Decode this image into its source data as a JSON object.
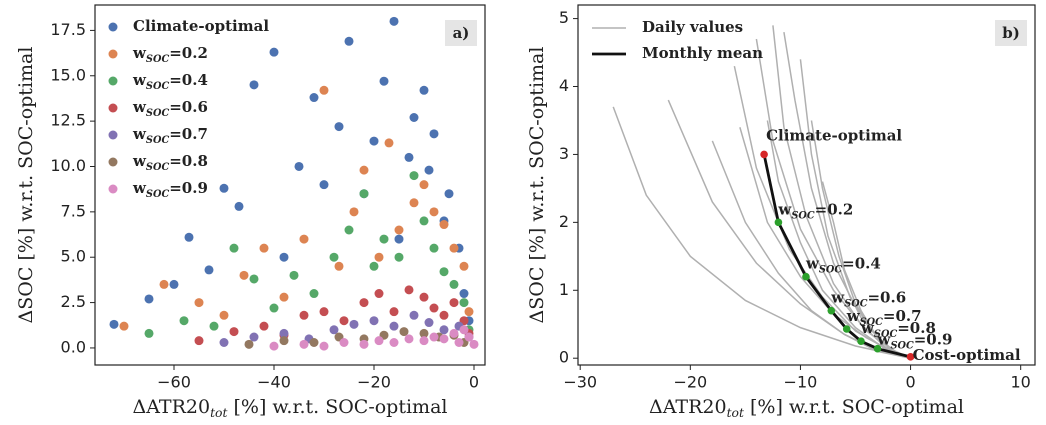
{
  "chart_data": [
    {
      "type": "scatter",
      "panel_label": "a)",
      "x_label": "ΔATR20tot [%] w.r.t. SOC-optimal",
      "y_label": "ΔSOC [%] w.r.t. SOC-optimal",
      "xlim": [
        -75.8,
        2.2
      ],
      "ylim": [
        -0.94,
        18.9
      ],
      "xticks": [
        {
          "value": -60,
          "label": "−60"
        },
        {
          "value": -40,
          "label": "−40"
        },
        {
          "value": -20,
          "label": "−20"
        },
        0
      ],
      "yticks": [
        {
          "value": 0,
          "label": "0.0"
        },
        2.5,
        {
          "value": 5,
          "label": "5.0"
        },
        7.5,
        {
          "value": 10,
          "label": "10.0"
        },
        12.5,
        {
          "value": 15,
          "label": "15.0"
        },
        17.5
      ],
      "legend": "upper left",
      "series": [
        {
          "name": "Climate-optimal",
          "color": "#4c72b0",
          "x": [
            -72,
            -65,
            -60,
            -57,
            -53,
            -50,
            -47,
            -44,
            -40,
            -38,
            -35,
            -32,
            -30,
            -27,
            -25,
            -22,
            -20,
            -18,
            -16,
            -15,
            -13,
            -12,
            -10,
            -9,
            -8,
            -6,
            -5,
            -3,
            -2,
            -1
          ],
          "values": [
            1.3,
            2.7,
            3.5,
            6.1,
            4.3,
            8.8,
            7.8,
            14.5,
            16.3,
            5.0,
            10.0,
            13.8,
            9.0,
            12.2,
            16.9,
            8.5,
            11.4,
            14.7,
            18.0,
            6.0,
            10.5,
            12.7,
            14.2,
            9.8,
            11.8,
            7.0,
            8.5,
            5.5,
            3.0,
            1.5
          ]
        },
        {
          "name": "wSOC=0.2",
          "color": "#dd8452",
          "x": [
            -70,
            -62,
            -55,
            -50,
            -46,
            -42,
            -38,
            -34,
            -30,
            -27,
            -24,
            -22,
            -19,
            -17,
            -15,
            -12,
            -10,
            -8,
            -6,
            -4,
            -2,
            -1
          ],
          "values": [
            1.2,
            3.5,
            2.5,
            1.8,
            4.0,
            5.5,
            2.8,
            6.0,
            14.2,
            4.5,
            7.5,
            9.8,
            5.0,
            11.3,
            6.5,
            8.0,
            9.0,
            7.5,
            6.8,
            5.5,
            4.5,
            2.0
          ]
        },
        {
          "name": "wSOC=0.4",
          "color": "#55a868",
          "x": [
            -65,
            -58,
            -52,
            -48,
            -44,
            -40,
            -36,
            -32,
            -28,
            -25,
            -22,
            -20,
            -18,
            -15,
            -12,
            -10,
            -8,
            -6,
            -4,
            -2,
            -1
          ],
          "values": [
            0.8,
            1.5,
            1.2,
            5.5,
            3.8,
            2.2,
            4.0,
            3.0,
            5.0,
            6.5,
            8.5,
            4.5,
            6.0,
            5.0,
            9.5,
            7.0,
            5.5,
            4.2,
            3.5,
            2.5,
            1.0
          ]
        },
        {
          "name": "wSOC=0.6",
          "color": "#c44e52",
          "x": [
            -55,
            -48,
            -42,
            -38,
            -34,
            -30,
            -26,
            -22,
            -19,
            -16,
            -13,
            -10,
            -8,
            -6,
            -4,
            -2,
            -1
          ],
          "values": [
            0.4,
            0.9,
            1.2,
            0.7,
            1.8,
            2.0,
            1.5,
            2.5,
            3.0,
            2.0,
            3.2,
            2.8,
            2.2,
            1.8,
            2.5,
            1.5,
            0.8
          ]
        },
        {
          "name": "wSOC=0.7",
          "color": "#8172b3",
          "x": [
            -50,
            -44,
            -38,
            -33,
            -28,
            -24,
            -20,
            -16,
            -12,
            -9,
            -6,
            -3,
            -1
          ],
          "values": [
            0.3,
            0.6,
            0.8,
            0.5,
            1.0,
            1.3,
            1.5,
            1.2,
            1.8,
            1.4,
            1.0,
            1.2,
            0.6
          ]
        },
        {
          "name": "wSOC=0.8",
          "color": "#937860",
          "x": [
            -45,
            -38,
            -32,
            -27,
            -22,
            -18,
            -14,
            -10,
            -7,
            -4,
            -2
          ],
          "values": [
            0.2,
            0.4,
            0.3,
            0.6,
            0.5,
            0.7,
            0.9,
            0.8,
            0.6,
            0.7,
            0.3
          ]
        },
        {
          "name": "wSOC=0.9",
          "color": "#da8bc3",
          "x": [
            -40,
            -34,
            -30,
            -26,
            -22,
            -19,
            -16,
            -13,
            -10,
            -8,
            -6,
            -4,
            -3,
            -2,
            -1,
            0
          ],
          "values": [
            0.1,
            0.2,
            0.1,
            0.3,
            0.2,
            0.4,
            0.3,
            0.5,
            0.4,
            0.6,
            0.5,
            0.8,
            0.3,
            1.0,
            0.6,
            0.2
          ]
        }
      ]
    },
    {
      "type": "line",
      "panel_label": "b)",
      "x_label": "ΔATR20tot [%] w.r.t. SOC-optimal",
      "y_label": "ΔSOC [%] w.r.t. SOC-optimal",
      "xlim": [
        -30.2,
        11.3
      ],
      "ylim": [
        -0.1,
        5.2
      ],
      "xticks": [
        {
          "value": -30,
          "label": "−30"
        },
        {
          "value": -20,
          "label": "−20"
        },
        {
          "value": -10,
          "label": "−10"
        },
        0,
        10
      ],
      "yticks": [
        0,
        1,
        2,
        3,
        4,
        5
      ],
      "legend": "upper left",
      "daily": {
        "name": "Daily values",
        "color": "#b0b0b0",
        "lines": [
          {
            "x": [
              -27,
              -24,
              -20,
              -15,
              -10,
              -5,
              0
            ],
            "values": [
              3.7,
              2.4,
              1.5,
              0.85,
              0.45,
              0.18,
              0
            ]
          },
          {
            "x": [
              -22,
              -18,
              -14,
              -10,
              -6,
              -3,
              0
            ],
            "values": [
              3.8,
              2.3,
              1.4,
              0.8,
              0.35,
              0.12,
              0
            ]
          },
          {
            "x": [
              -16,
              -14,
              -11,
              -8,
              -5,
              -2,
              0
            ],
            "values": [
              4.3,
              2.8,
              1.6,
              0.9,
              0.4,
              0.12,
              0
            ]
          },
          {
            "x": [
              -14,
              -12.5,
              -10,
              -7,
              -4,
              -1,
              0
            ],
            "values": [
              4.7,
              3.2,
              1.9,
              1.0,
              0.4,
              0.05,
              0
            ]
          },
          {
            "x": [
              -12.5,
              -11.5,
              -9.5,
              -7,
              -4.5,
              -2,
              0
            ],
            "values": [
              4.9,
              3.4,
              2.1,
              1.1,
              0.5,
              0.12,
              0
            ]
          },
          {
            "x": [
              -13,
              -12,
              -10,
              -8,
              -5,
              -2,
              0
            ],
            "values": [
              3.5,
              2.6,
              1.7,
              1.0,
              0.45,
              0.1,
              0
            ]
          },
          {
            "x": [
              -10,
              -9,
              -7.5,
              -5.5,
              -3.5,
              -1.5,
              0
            ],
            "values": [
              4.4,
              3.0,
              1.8,
              0.9,
              0.4,
              0.08,
              0
            ]
          },
          {
            "x": [
              -15.5,
              -13,
              -10,
              -7,
              -4,
              -1,
              0
            ],
            "values": [
              3.4,
              2.0,
              1.2,
              0.65,
              0.3,
              0.05,
              0
            ]
          },
          {
            "x": [
              -18,
              -15,
              -12,
              -9,
              -6,
              -3,
              0
            ],
            "values": [
              3.2,
              2.0,
              1.25,
              0.7,
              0.35,
              0.1,
              0
            ]
          },
          {
            "x": [
              -9,
              -8,
              -6.5,
              -5,
              -3,
              -1,
              0
            ],
            "values": [
              3.5,
              2.5,
              1.5,
              0.8,
              0.3,
              0.05,
              0
            ]
          },
          {
            "x": [
              -11.5,
              -10.5,
              -9,
              -7,
              -4.5,
              -2,
              0
            ],
            "values": [
              4.8,
              3.8,
              2.5,
              1.4,
              0.6,
              0.15,
              0
            ]
          },
          {
            "x": [
              -8,
              -7,
              -6,
              -4.5,
              -3,
              -1,
              0
            ],
            "values": [
              2.6,
              2.0,
              1.3,
              0.7,
              0.3,
              0.05,
              0
            ]
          }
        ]
      },
      "mean": {
        "name": "Monthly mean",
        "color": "#111111",
        "x": [
          -13.3,
          -12,
          -9.5,
          -7.2,
          -5.8,
          -4.5,
          -3,
          0
        ],
        "values": [
          3.0,
          2.0,
          1.2,
          0.7,
          0.43,
          0.25,
          0.14,
          0.02
        ],
        "point_colors": [
          "#d62728",
          "#2ca02c",
          "#2ca02c",
          "#2ca02c",
          "#2ca02c",
          "#2ca02c",
          "#2ca02c",
          "#d62728"
        ],
        "point_labels": [
          "Climate-optimal",
          "wSOC=0.2",
          "wSOC=0.4",
          "wSOC=0.6",
          "wSOC=0.7",
          "wSOC=0.8",
          "wSOC=0.9",
          "Cost-optimal"
        ]
      }
    }
  ]
}
